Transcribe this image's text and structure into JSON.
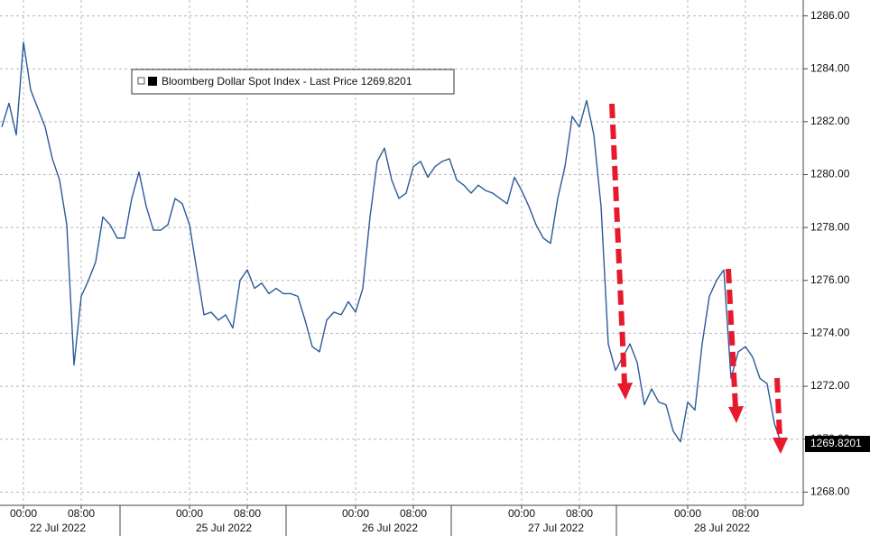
{
  "chart_data": {
    "type": "line",
    "categories": [
      null,
      null,
      null,
      "00:00",
      null,
      null,
      null,
      null,
      null,
      null,
      null,
      "08:00",
      null,
      null,
      null,
      null,
      null,
      null,
      null,
      null,
      null,
      null,
      null,
      null,
      null,
      null,
      "00:00",
      null,
      null,
      null,
      null,
      null,
      null,
      null,
      "08:00",
      null,
      null,
      null,
      null,
      null,
      null,
      null,
      null,
      null,
      null,
      null,
      null,
      null,
      null,
      "00:00",
      null,
      null,
      null,
      null,
      null,
      null,
      null,
      "08:00",
      null,
      null,
      null,
      null,
      null,
      null,
      null,
      null,
      null,
      null,
      null,
      null,
      null,
      null,
      "00:00",
      null,
      null,
      null,
      null,
      null,
      null,
      null,
      "08:00",
      null,
      null,
      null,
      null,
      null,
      null,
      null,
      null,
      null,
      null,
      null,
      null,
      null,
      null,
      "00:00",
      null,
      null,
      null,
      null,
      null,
      null,
      null,
      "08:00",
      null,
      null,
      null,
      null,
      null
    ],
    "date_categories": [
      null,
      null,
      null,
      "22 Jul 2022",
      null,
      null,
      null,
      null,
      null,
      null,
      null,
      null,
      null,
      null,
      null,
      null,
      null,
      null,
      null,
      null,
      null,
      null,
      null,
      null,
      null,
      null,
      "25 Jul 2022",
      null,
      null,
      null,
      null,
      null,
      null,
      null,
      null,
      null,
      null,
      null,
      null,
      null,
      null,
      null,
      null,
      null,
      null,
      null,
      null,
      null,
      null,
      "26 Jul 2022",
      null,
      null,
      null,
      null,
      null,
      null,
      null,
      null,
      null,
      null,
      null,
      null,
      null,
      null,
      null,
      null,
      null,
      null,
      null,
      null,
      null,
      null,
      "27 Jul 2022",
      null,
      null,
      null,
      null,
      null,
      null,
      null,
      null,
      null,
      null,
      null,
      null,
      null,
      null,
      null,
      null,
      null,
      null,
      null,
      null,
      null,
      null,
      "28 Jul 2022",
      null,
      null,
      null,
      null,
      null,
      null,
      null,
      null,
      null,
      null,
      null,
      null,
      null
    ],
    "series": [
      {
        "name": "Bloomberg Dollar Spot Index - Last Price 1269.8201",
        "color": "#2b5b9a",
        "values": [
          1281.8,
          1282.7,
          1281.5,
          1285.0,
          1283.2,
          1282.5,
          1281.8,
          1280.6,
          1279.8,
          1278.1,
          1272.8,
          1275.4,
          1276.0,
          1276.7,
          1278.4,
          1278.1,
          1277.6,
          1277.6,
          1279.1,
          1280.1,
          1278.8,
          1277.9,
          1277.9,
          1278.1,
          1279.1,
          1278.9,
          1278.1,
          1276.4,
          1274.7,
          1274.8,
          1274.5,
          1274.7,
          1274.2,
          1276.0,
          1276.4,
          1275.7,
          1275.9,
          1275.5,
          1275.7,
          1275.5,
          1275.5,
          1275.4,
          1274.5,
          1273.5,
          1273.3,
          1274.5,
          1274.8,
          1274.7,
          1275.2,
          1274.8,
          1275.7,
          1278.4,
          1280.5,
          1281.0,
          1279.8,
          1279.1,
          1279.3,
          1280.3,
          1280.5,
          1279.9,
          1280.3,
          1280.5,
          1280.6,
          1279.8,
          1279.6,
          1279.3,
          1279.6,
          1279.4,
          1279.3,
          1279.1,
          1278.9,
          1279.9,
          1279.4,
          1278.8,
          1278.1,
          1277.6,
          1277.4,
          1279.1,
          1280.3,
          1282.2,
          1281.8,
          1282.8,
          1281.5,
          1278.8,
          1273.6,
          1272.6,
          1273.1,
          1273.6,
          1272.9,
          1271.3,
          1271.9,
          1271.4,
          1271.3,
          1270.3,
          1269.9,
          1271.4,
          1271.1,
          1273.6,
          1275.4,
          1276.0,
          1276.4,
          1272.3,
          1273.3,
          1273.5,
          1273.1,
          1272.3,
          1272.1,
          1270.6,
          1269.8201
        ]
      }
    ],
    "ylim": [
      1267.5,
      1286.6
    ],
    "yticks": [
      {
        "value": 1268,
        "label": "1268.00"
      },
      {
        "value": 1270,
        "label": "1270.00"
      },
      {
        "value": 1272,
        "label": "1272.00"
      },
      {
        "value": 1274,
        "label": "1274.00"
      },
      {
        "value": 1276,
        "label": "1276.00"
      },
      {
        "value": 1278,
        "label": "1278.00"
      },
      {
        "value": 1280,
        "label": "1280.00"
      },
      {
        "value": 1282,
        "label": "1282.00"
      },
      {
        "value": 1284,
        "label": "1284.00"
      },
      {
        "value": 1286,
        "label": "1286.00"
      }
    ],
    "grid": true,
    "legend": "upper-left"
  }
}
